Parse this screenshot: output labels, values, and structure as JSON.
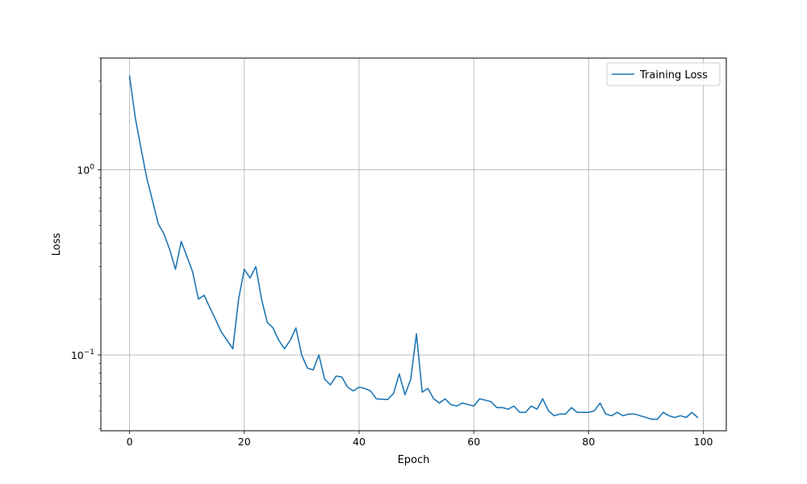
{
  "chart_data": {
    "type": "line",
    "title": "",
    "xlabel": "Epoch",
    "ylabel": "Loss",
    "yscale": "log",
    "xlim": [
      -5,
      104
    ],
    "ylim": [
      0.039,
      4.0
    ],
    "grid": true,
    "legend_position": "top-right",
    "x_ticks": [
      0,
      20,
      40,
      60,
      80,
      100
    ],
    "y_ticks": [
      {
        "value": 1.0,
        "base": "10",
        "exp": "0"
      },
      {
        "value": 0.1,
        "base": "10",
        "exp": "−1"
      }
    ],
    "colors": {
      "line": "#1f77b4",
      "grid": "#b0b0b0"
    },
    "series": [
      {
        "name": "Training Loss",
        "values": [
          3.2,
          1.9,
          1.3,
          0.9,
          0.68,
          0.51,
          0.45,
          0.37,
          0.29,
          0.41,
          0.34,
          0.28,
          0.2,
          0.21,
          0.18,
          0.155,
          0.133,
          0.12,
          0.108,
          0.2,
          0.29,
          0.26,
          0.3,
          0.2,
          0.15,
          0.14,
          0.12,
          0.108,
          0.12,
          0.14,
          0.1,
          0.085,
          0.083,
          0.1,
          0.074,
          0.069,
          0.077,
          0.076,
          0.067,
          0.064,
          0.067,
          0.066,
          0.064,
          0.058,
          0.0577,
          0.0575,
          0.062,
          0.079,
          0.061,
          0.074,
          0.13,
          0.063,
          0.066,
          0.058,
          0.055,
          0.058,
          0.054,
          0.053,
          0.055,
          0.054,
          0.053,
          0.058,
          0.057,
          0.056,
          0.052,
          0.052,
          0.051,
          0.053,
          0.049,
          0.049,
          0.053,
          0.051,
          0.058,
          0.05,
          0.047,
          0.048,
          0.048,
          0.052,
          0.049,
          0.049,
          0.049,
          0.05,
          0.055,
          0.048,
          0.047,
          0.049,
          0.047,
          0.048,
          0.048,
          0.047,
          0.046,
          0.045,
          0.045,
          0.049,
          0.047,
          0.046,
          0.047,
          0.046,
          0.049,
          0.046
        ]
      }
    ]
  }
}
